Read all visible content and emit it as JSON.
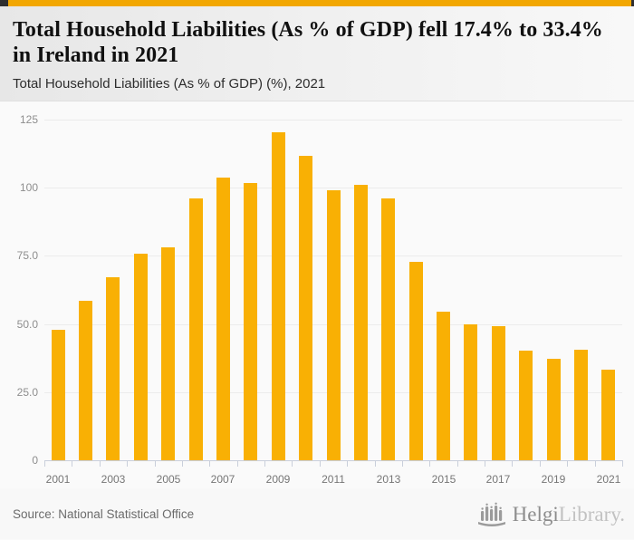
{
  "topbar": {
    "accent_color": "#f2a702"
  },
  "header": {
    "title": "Total Household Liabilities (As % of GDP) fell 17.4% to 33.4% in Ireland in 2021",
    "subtitle": "Total Household Liabilities (As % of GDP) (%), 2021"
  },
  "chart_data": {
    "type": "bar",
    "title": "Total Household Liabilities (As % of GDP) (%), 2021",
    "categories": [
      "2001",
      "2002",
      "2003",
      "2004",
      "2005",
      "2006",
      "2007",
      "2008",
      "2009",
      "2010",
      "2011",
      "2012",
      "2013",
      "2014",
      "2015",
      "2016",
      "2017",
      "2018",
      "2019",
      "2020",
      "2021"
    ],
    "values": [
      47.8,
      58.6,
      67.0,
      75.9,
      78.2,
      96.1,
      103.7,
      101.8,
      120.4,
      111.8,
      99.1,
      101.0,
      96.0,
      72.8,
      54.6,
      50.0,
      49.3,
      40.2,
      37.2,
      40.4,
      33.4
    ],
    "xlabel": "",
    "ylabel": "",
    "ylim": [
      0,
      130
    ],
    "yticks": [
      {
        "value": 0,
        "label": "0"
      },
      {
        "value": 25,
        "label": "25.0"
      },
      {
        "value": 50,
        "label": "50.0"
      },
      {
        "value": 75,
        "label": "75.0"
      },
      {
        "value": 100,
        "label": "100"
      },
      {
        "value": 125,
        "label": "125"
      }
    ],
    "xtick_labels": [
      "2001",
      "2003",
      "2005",
      "2007",
      "2009",
      "2011",
      "2013",
      "2015",
      "2017",
      "2019",
      "2021"
    ],
    "bar_color": "#f9b004",
    "grid": true,
    "legend": false
  },
  "footer": {
    "source": "Source: National Statistical Office",
    "logo": {
      "part1": "Helgi",
      "part2": "Library."
    }
  }
}
